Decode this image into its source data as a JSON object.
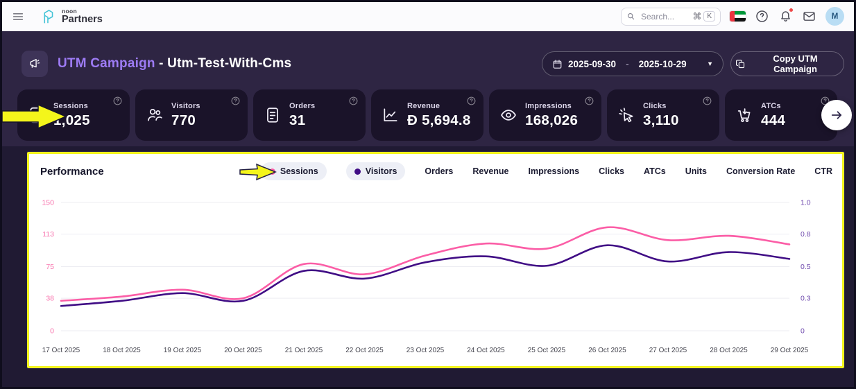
{
  "top_bar": {
    "logo_small": "noon",
    "logo_text": "Partners",
    "search_placeholder": "Search...",
    "shortcut_cmd": "⌘",
    "shortcut_key": "K",
    "avatar_initial": "M"
  },
  "header": {
    "campaign_type": "UTM Campaign",
    "campaign_name": " - Utm-Test-With-Cms",
    "date_from": "2025-09-30",
    "date_separator": "-",
    "date_to": "2025-10-29",
    "copy_button_label": "Copy UTM Campaign"
  },
  "metrics": {
    "cards": [
      {
        "label": "Sessions",
        "value": "1,025",
        "icon": "contact-book-icon"
      },
      {
        "label": "Visitors",
        "value": "770",
        "icon": "people-icon"
      },
      {
        "label": "Orders",
        "value": "31",
        "icon": "document-icon"
      },
      {
        "label": "Revenue",
        "value": "Ð 5,694.8",
        "icon": "line-chart-icon"
      },
      {
        "label": "Impressions",
        "value": "168,026",
        "icon": "eye-icon"
      },
      {
        "label": "Clicks",
        "value": "3,110",
        "icon": "cursor-click-icon"
      },
      {
        "label": "ATCs",
        "value": "444",
        "icon": "cart-down-icon"
      }
    ]
  },
  "chart": {
    "title": "Performance",
    "tabs": [
      {
        "label": "Sessions",
        "active": true,
        "dot_color": "#fb5da6"
      },
      {
        "label": "Visitors",
        "active": true,
        "dot_color": "#400d85"
      },
      {
        "label": "Orders"
      },
      {
        "label": "Revenue"
      },
      {
        "label": "Impressions"
      },
      {
        "label": "Clicks"
      },
      {
        "label": "ATCs"
      },
      {
        "label": "Units"
      },
      {
        "label": "Conversion Rate"
      },
      {
        "label": "CTR"
      }
    ],
    "chart_data": {
      "type": "line",
      "x": [
        "17 Oct 2025",
        "18 Oct 2025",
        "19 Oct 2025",
        "20 Oct 2025",
        "21 Oct 2025",
        "22 Oct 2025",
        "23 Oct 2025",
        "24 Oct 2025",
        "25 Oct 2025",
        "26 Oct 2025",
        "27 Oct 2025",
        "28 Oct 2025",
        "29 Oct 2025"
      ],
      "series": [
        {
          "name": "Sessions",
          "color": "#fb5da6",
          "values": [
            35,
            40,
            48,
            38,
            78,
            66,
            88,
            102,
            96,
            121,
            106,
            111,
            101
          ]
        },
        {
          "name": "Visitors",
          "color": "#400d85",
          "values": [
            29,
            35,
            44,
            35,
            70,
            61,
            80,
            87,
            76,
            100,
            81,
            92,
            84
          ]
        }
      ],
      "left_axis": {
        "ticks": [
          0,
          38,
          75,
          113,
          150
        ],
        "color": "#f874ae"
      },
      "right_axis": {
        "ticks": [
          "0",
          "0.3",
          "0.5",
          "0.8",
          "1.0"
        ],
        "color": "#6e49ad"
      },
      "ylim": [
        0,
        150
      ],
      "grid": true,
      "legend_position": "top"
    }
  },
  "colors": {
    "annotation_yellow": "#f4f51b",
    "band_background": "#2e2543",
    "body_background": "#201a33",
    "card_background": "#1a1329",
    "accent_purple": "#9d7bf4"
  }
}
